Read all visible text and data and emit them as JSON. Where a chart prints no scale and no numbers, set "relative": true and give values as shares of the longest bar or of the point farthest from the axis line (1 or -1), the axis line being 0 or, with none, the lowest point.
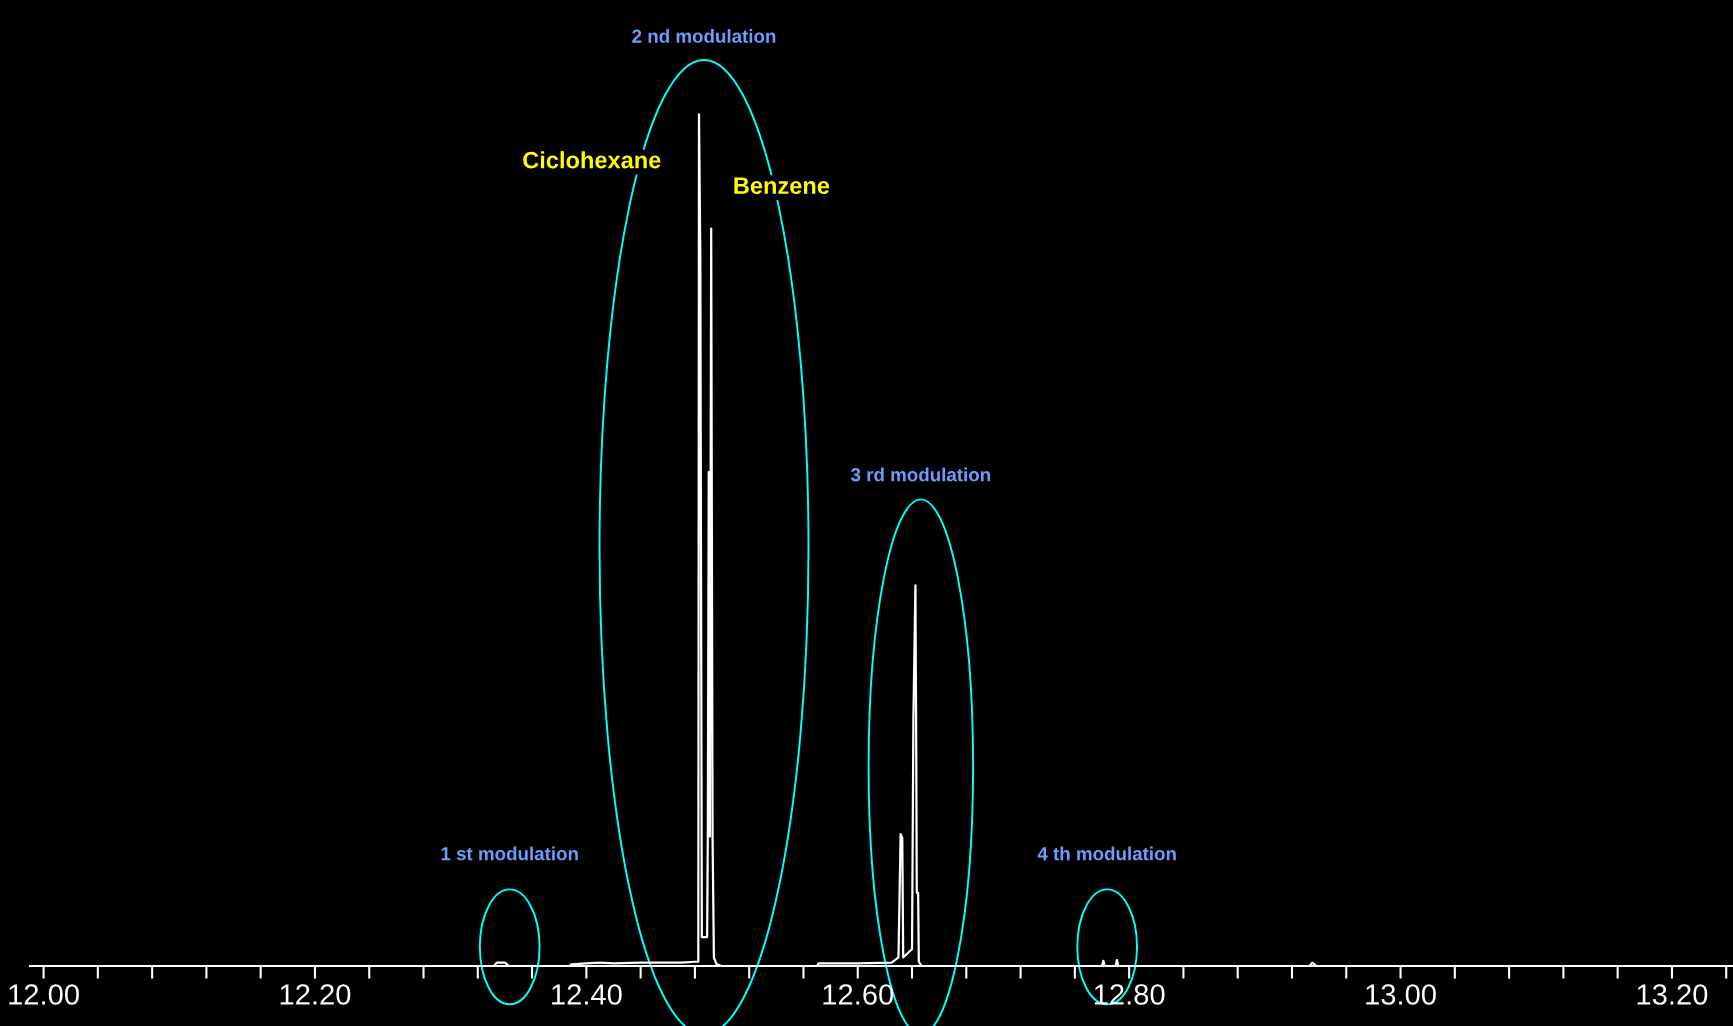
{
  "chart_data": {
    "type": "line",
    "relative": true,
    "grid": false,
    "legend": false,
    "tick_labels": "x",
    "marker": "none",
    "line_style": "solid",
    "xlim": [
      11.99,
      13.245
    ],
    "xticks": [
      {
        "value": 12.0,
        "label": "12.00"
      },
      {
        "value": 12.04,
        "label": null
      },
      {
        "value": 12.08,
        "label": null
      },
      {
        "value": 12.12,
        "label": null
      },
      {
        "value": 12.16,
        "label": null
      },
      {
        "value": 12.2,
        "label": "12.20"
      },
      {
        "value": 12.24,
        "label": null
      },
      {
        "value": 12.28,
        "label": null
      },
      {
        "value": 12.32,
        "label": null
      },
      {
        "value": 12.36,
        "label": null
      },
      {
        "value": 12.4,
        "label": "12.40"
      },
      {
        "value": 12.44,
        "label": null
      },
      {
        "value": 12.48,
        "label": null
      },
      {
        "value": 12.52,
        "label": null
      },
      {
        "value": 12.56,
        "label": null
      },
      {
        "value": 12.6,
        "label": "12.60"
      },
      {
        "value": 12.64,
        "label": null
      },
      {
        "value": 12.68,
        "label": null
      },
      {
        "value": 12.72,
        "label": null
      },
      {
        "value": 12.76,
        "label": null
      },
      {
        "value": 12.8,
        "label": "12.80"
      },
      {
        "value": 12.84,
        "label": null
      },
      {
        "value": 12.88,
        "label": null
      },
      {
        "value": 12.92,
        "label": null
      },
      {
        "value": 12.96,
        "label": null
      },
      {
        "value": 13.0,
        "label": "13.00"
      },
      {
        "value": 13.04,
        "label": null
      },
      {
        "value": 13.08,
        "label": null
      },
      {
        "value": 13.12,
        "label": null
      },
      {
        "value": 13.16,
        "label": null
      },
      {
        "value": 13.2,
        "label": "13.20"
      },
      {
        "value": 13.24,
        "label": null
      }
    ],
    "series": [
      {
        "color": "#ffffff",
        "x": [
          11.99,
          12.332,
          12.334,
          12.34,
          12.343,
          12.388,
          12.389,
          12.4,
          12.41,
          12.42,
          12.44,
          12.47,
          12.48,
          12.4825,
          12.483,
          12.484,
          12.4851,
          12.489,
          12.4895,
          12.4902,
          12.491,
          12.492,
          12.493,
          12.494,
          12.496,
          12.5,
          12.57,
          12.571,
          12.6,
          12.625,
          12.63,
          12.6316,
          12.6328,
          12.6335,
          12.64,
          12.641,
          12.6425,
          12.643,
          12.6435,
          12.6445,
          12.645,
          12.647,
          12.78,
          12.781,
          12.782,
          12.79,
          12.791,
          12.792,
          12.933,
          12.935,
          12.938,
          13.245
        ],
        "values": [
          0,
          0,
          0.004,
          0.004,
          0,
          0,
          0.002,
          0.003,
          0.004,
          0.003,
          0.004,
          0.004,
          0.005,
          0.005,
          1.0,
          0.829,
          0.034,
          0.034,
          0.152,
          0.58,
          0.152,
          0.866,
          0.152,
          0.01,
          0.002,
          0,
          0,
          0.003,
          0.003,
          0.004,
          0.01,
          0.155,
          0.15,
          0.01,
          0.02,
          0.29,
          0.447,
          0.29,
          0.086,
          0.086,
          0.005,
          0,
          0,
          0.006,
          0,
          0,
          0.007,
          0,
          0,
          0.004,
          0,
          0
        ]
      }
    ],
    "annotations": [
      "1 st modulation",
      "2 nd modulation",
      "3 rd modulation",
      "4 th modulation",
      "Ciclohexane",
      "Benzene"
    ]
  }
}
